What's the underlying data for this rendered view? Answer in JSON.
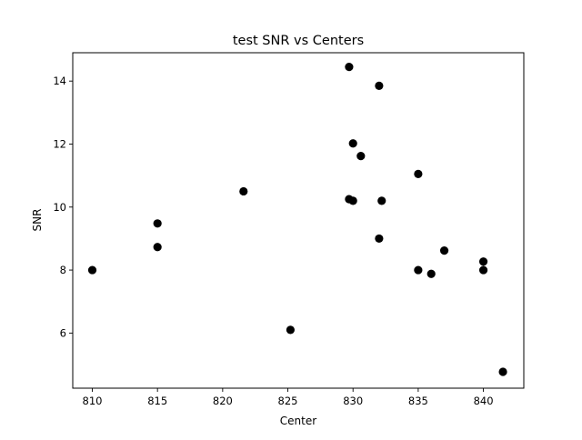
{
  "chart_data": {
    "type": "scatter",
    "title": "test SNR vs Centers",
    "xlabel": "Center",
    "ylabel": "SNR",
    "xlim": [
      808.5,
      843.1
    ],
    "ylim": [
      4.25,
      14.9
    ],
    "xticks": [
      810,
      815,
      820,
      825,
      830,
      835,
      840
    ],
    "yticks": [
      6,
      8,
      10,
      12,
      14
    ],
    "grid": false,
    "marker_color": "#000000",
    "points": [
      {
        "x": 810.0,
        "y": 8.0
      },
      {
        "x": 815.0,
        "y": 9.48
      },
      {
        "x": 815.0,
        "y": 8.73
      },
      {
        "x": 821.6,
        "y": 10.5
      },
      {
        "x": 825.2,
        "y": 6.1
      },
      {
        "x": 829.7,
        "y": 14.45
      },
      {
        "x": 829.7,
        "y": 10.25
      },
      {
        "x": 830.0,
        "y": 12.02
      },
      {
        "x": 830.0,
        "y": 10.2
      },
      {
        "x": 830.6,
        "y": 11.62
      },
      {
        "x": 832.0,
        "y": 13.85
      },
      {
        "x": 832.0,
        "y": 9.0
      },
      {
        "x": 832.2,
        "y": 10.2
      },
      {
        "x": 835.0,
        "y": 11.05
      },
      {
        "x": 835.0,
        "y": 8.0
      },
      {
        "x": 836.0,
        "y": 7.88
      },
      {
        "x": 837.0,
        "y": 8.62
      },
      {
        "x": 840.0,
        "y": 8.27
      },
      {
        "x": 840.0,
        "y": 8.0
      },
      {
        "x": 841.5,
        "y": 4.77
      }
    ]
  }
}
